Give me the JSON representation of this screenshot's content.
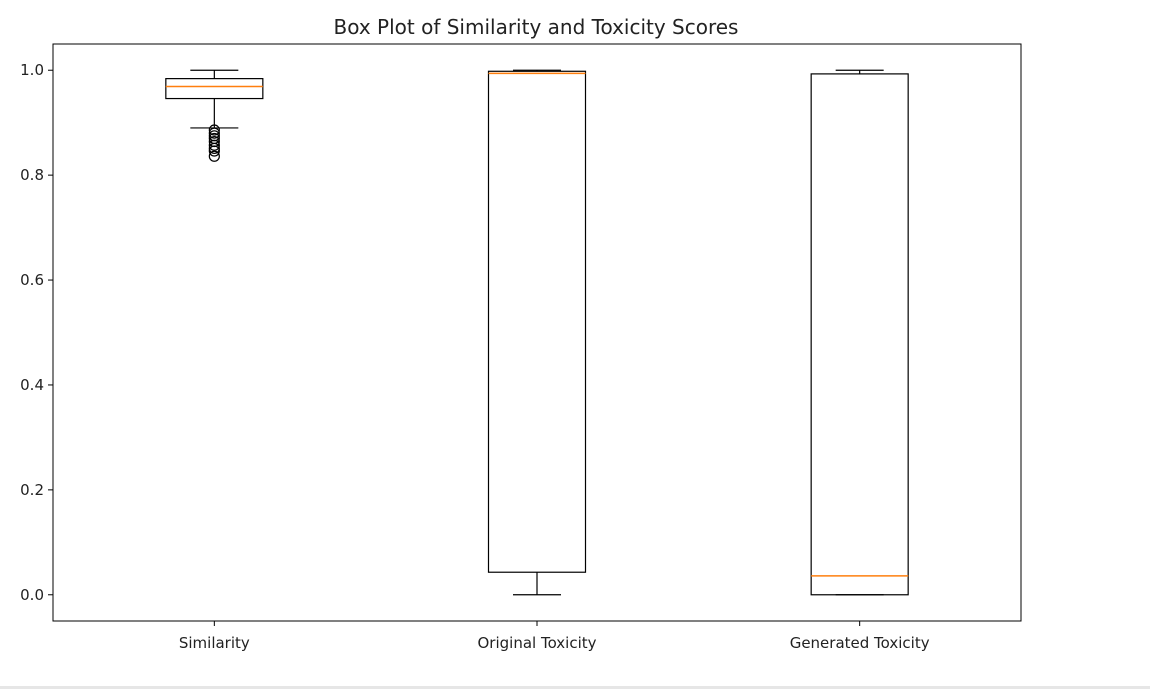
{
  "chart_data": {
    "type": "box",
    "title": "Box Plot of Similarity and Toxicity Scores",
    "xlabel": "",
    "ylabel": "",
    "ylim": [
      -0.05,
      1.05
    ],
    "yticks": [
      0.0,
      0.2,
      0.4,
      0.6,
      0.8,
      1.0
    ],
    "ytick_labels": [
      "0.0",
      "0.2",
      "0.4",
      "0.6",
      "0.8",
      "1.0"
    ],
    "grid": false,
    "categories": [
      "Similarity",
      "Original Toxicity",
      "Generated Toxicity"
    ],
    "boxes": [
      {
        "label": "Similarity",
        "whisker_low": 0.89,
        "q1": 0.946,
        "median": 0.969,
        "q3": 0.984,
        "whisker_high": 1.0,
        "outliers": [
          0.886,
          0.88,
          0.875,
          0.87,
          0.864,
          0.857,
          0.851,
          0.846,
          0.836
        ]
      },
      {
        "label": "Original Toxicity",
        "whisker_low": 0.0,
        "q1": 0.043,
        "median": 0.994,
        "q3": 0.998,
        "whisker_high": 1.0,
        "outliers": []
      },
      {
        "label": "Generated Toxicity",
        "whisker_low": 0.0,
        "q1": 0.0,
        "median": 0.036,
        "q3": 0.993,
        "whisker_high": 1.0,
        "outliers": []
      }
    ],
    "colors": {
      "box": "#000000",
      "median": "#ff7f0e",
      "axes": "#000000",
      "text": "#222222"
    }
  }
}
